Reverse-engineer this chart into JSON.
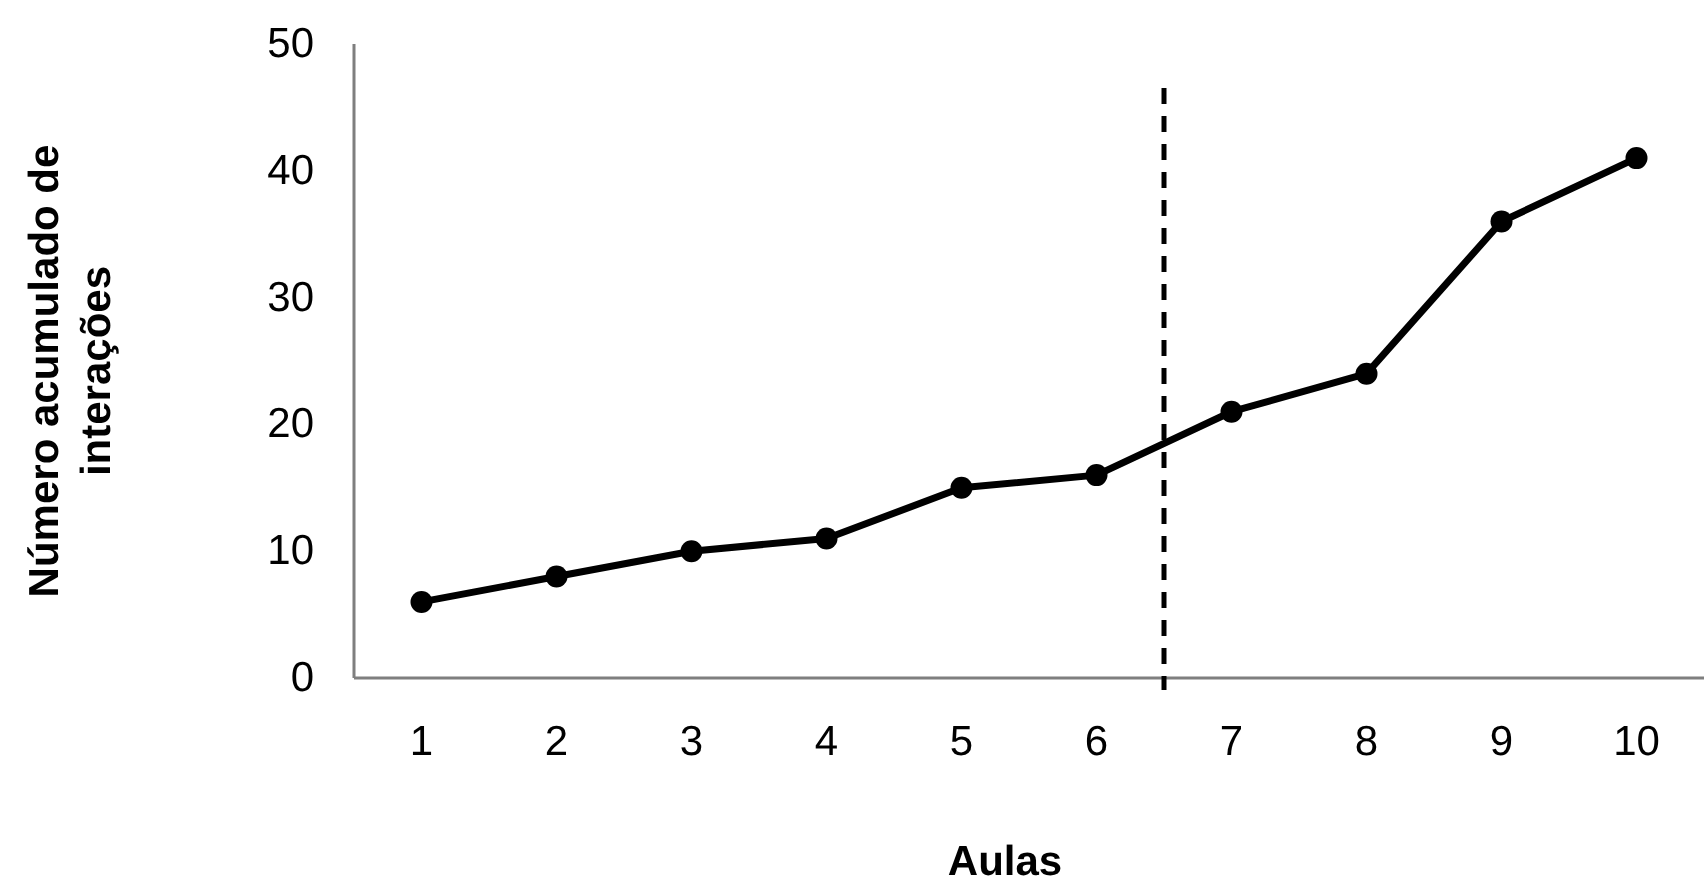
{
  "chart_data": {
    "type": "line",
    "xlabel": "Aulas",
    "ylabel": "Número acumulado de\ninterações",
    "x": [
      1,
      2,
      3,
      4,
      5,
      6,
      7,
      8,
      9,
      10
    ],
    "series": [
      {
        "color": "#000000",
        "values": [
          6,
          8,
          10,
          11,
          15,
          16,
          21,
          24,
          36,
          41
        ]
      }
    ],
    "xlim": [
      0.5,
      10.5
    ],
    "xticks": [
      1,
      2,
      3,
      4,
      5,
      6,
      7,
      8,
      9,
      10
    ],
    "ylim": [
      0,
      50
    ],
    "yticks": [
      0,
      10,
      20,
      30,
      40,
      50
    ],
    "ref_lines": [
      {
        "axis": "x",
        "value": 6.5,
        "color": "#000000",
        "line_style": "dashed"
      }
    ],
    "marker": "circle",
    "line_style": "solid",
    "grid": false
  }
}
